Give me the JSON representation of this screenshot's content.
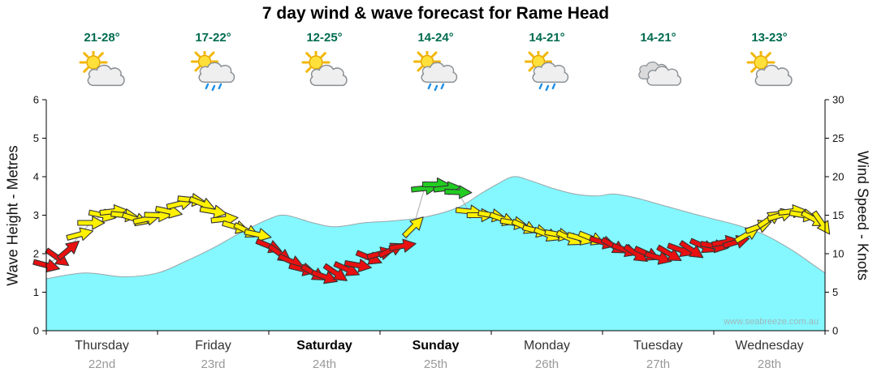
{
  "title": "7 day wind & wave forecast for Rame Head",
  "watermark": "www.seabreeze.com.au",
  "days": [
    {
      "name": "Thursday",
      "date": "22nd",
      "temp": "21-28°",
      "icon": "sun-cloud",
      "weekend": false
    },
    {
      "name": "Friday",
      "date": "23rd",
      "temp": "17-22°",
      "icon": "sun-cloud-rain",
      "weekend": false
    },
    {
      "name": "Saturday",
      "date": "24th",
      "temp": "12-25°",
      "icon": "sun-cloud",
      "weekend": true
    },
    {
      "name": "Sunday",
      "date": "25th",
      "temp": "14-24°",
      "icon": "sun-cloud-rain",
      "weekend": true
    },
    {
      "name": "Monday",
      "date": "26th",
      "temp": "14-21°",
      "icon": "sun-cloud-rain",
      "weekend": false
    },
    {
      "name": "Tuesday",
      "date": "27th",
      "temp": "14-21°",
      "icon": "cloudy",
      "weekend": false
    },
    {
      "name": "Wednesday",
      "date": "28th",
      "temp": "13-23°",
      "icon": "sun-cloud",
      "weekend": false
    }
  ],
  "axes": {
    "left_label": "Wave Height - Metres",
    "right_label": "Wind Speed - Knots",
    "left_ticks": [
      0,
      1,
      2,
      3,
      4,
      5,
      6
    ],
    "right_ticks": [
      0,
      5,
      10,
      15,
      20,
      25,
      30
    ],
    "left_range": [
      0,
      6
    ],
    "right_range": [
      0,
      30
    ]
  },
  "colors": {
    "wave_fill": "#84F7FF",
    "wave_line": "#9AA6A8",
    "arrow_red": "#E81010",
    "arrow_yellow": "#FFF100",
    "arrow_green": "#22CC22",
    "arrow_outline": "#333333",
    "connector": "#AAAAAA",
    "temp_text": "#006B4F",
    "watermark_text": "#9FB8BA"
  },
  "wind_thresholds": {
    "red_below_knots": 12,
    "green_at_or_above_knots": 17.5
  },
  "chart_data": {
    "type": "area",
    "title": "7 day wind & wave forecast for Rame Head",
    "x_unit": "days (0 = Thursday 22nd 00:00, 7 = end of Wednesday 28th)",
    "categories": [
      "Thursday 22nd",
      "Friday 23rd",
      "Saturday 24th",
      "Sunday 25th",
      "Monday 26th",
      "Tuesday 27th",
      "Wednesday 28th"
    ],
    "ylabel_left": "Wave Height - Metres",
    "ylabel_right": "Wind Speed - Knots",
    "ylim_left": [
      0,
      6
    ],
    "ylim_right": [
      0,
      30
    ],
    "grid": false,
    "wave_height_m": {
      "label": "Wave Height (metres)",
      "points": [
        [
          0,
          1.35
        ],
        [
          0.35,
          1.5
        ],
        [
          0.7,
          1.4
        ],
        [
          1.0,
          1.5
        ],
        [
          1.25,
          1.8
        ],
        [
          1.5,
          2.15
        ],
        [
          1.75,
          2.55
        ],
        [
          2.0,
          2.9
        ],
        [
          2.15,
          3.0
        ],
        [
          2.4,
          2.8
        ],
        [
          2.6,
          2.7
        ],
        [
          2.85,
          2.8
        ],
        [
          3.1,
          2.85
        ],
        [
          3.4,
          2.95
        ],
        [
          3.7,
          3.2
        ],
        [
          3.9,
          3.55
        ],
        [
          4.05,
          3.8
        ],
        [
          4.2,
          4.0
        ],
        [
          4.35,
          3.9
        ],
        [
          4.55,
          3.7
        ],
        [
          4.75,
          3.55
        ],
        [
          4.95,
          3.5
        ],
        [
          5.1,
          3.55
        ],
        [
          5.3,
          3.45
        ],
        [
          5.55,
          3.25
        ],
        [
          5.8,
          3.05
        ],
        [
          6.0,
          2.9
        ],
        [
          6.2,
          2.75
        ],
        [
          6.45,
          2.5
        ],
        [
          6.7,
          2.1
        ],
        [
          6.9,
          1.7
        ],
        [
          7.0,
          1.5
        ]
      ]
    },
    "wind_knots": {
      "label": "Wind Speed (knots) with direction arrows",
      "points_format": "[t_days, knots, arrow_rotation_deg_clockwise_from_east]",
      "points": [
        [
          0.0,
          8.5,
          15
        ],
        [
          0.1,
          9.5,
          35
        ],
        [
          0.2,
          10.5,
          -40
        ],
        [
          0.3,
          12.5,
          -15
        ],
        [
          0.4,
          14,
          0
        ],
        [
          0.5,
          15,
          12
        ],
        [
          0.6,
          15.5,
          -6
        ],
        [
          0.7,
          15,
          6
        ],
        [
          0.8,
          14.5,
          18
        ],
        [
          0.9,
          14.5,
          -12
        ],
        [
          1.0,
          15,
          2
        ],
        [
          1.1,
          15.5,
          12
        ],
        [
          1.2,
          16.5,
          -14
        ],
        [
          1.3,
          17,
          6
        ],
        [
          1.4,
          16.5,
          22
        ],
        [
          1.5,
          15.5,
          10
        ],
        [
          1.6,
          14.5,
          -6
        ],
        [
          1.7,
          13.5,
          16
        ],
        [
          1.8,
          13,
          26
        ],
        [
          1.9,
          12.5,
          12
        ],
        [
          2.0,
          11,
          22
        ],
        [
          2.1,
          10,
          36
        ],
        [
          2.2,
          9,
          24
        ],
        [
          2.3,
          8,
          14
        ],
        [
          2.4,
          7.5,
          30
        ],
        [
          2.5,
          7,
          20
        ],
        [
          2.6,
          7.5,
          34
        ],
        [
          2.7,
          8,
          24
        ],
        [
          2.8,
          8.5,
          10
        ],
        [
          2.9,
          9.5,
          22
        ],
        [
          3.0,
          10,
          -14
        ],
        [
          3.1,
          10.5,
          -26
        ],
        [
          3.2,
          11,
          -10
        ],
        [
          3.3,
          13.5,
          -45
        ],
        [
          3.4,
          18.5,
          -6
        ],
        [
          3.5,
          19,
          0
        ],
        [
          3.6,
          18.5,
          -6
        ],
        [
          3.7,
          18,
          2
        ],
        [
          3.8,
          15.5,
          6
        ],
        [
          3.9,
          15,
          0
        ],
        [
          4.0,
          15,
          10
        ],
        [
          4.1,
          14.5,
          20
        ],
        [
          4.2,
          14,
          10
        ],
        [
          4.3,
          13.5,
          24
        ],
        [
          4.4,
          13,
          14
        ],
        [
          4.5,
          12.5,
          22
        ],
        [
          4.6,
          12.5,
          10
        ],
        [
          4.7,
          12,
          26
        ],
        [
          4.8,
          12,
          16
        ],
        [
          4.9,
          12,
          22
        ],
        [
          5.0,
          11.5,
          16
        ],
        [
          5.1,
          11,
          30
        ],
        [
          5.2,
          10.5,
          20
        ],
        [
          5.3,
          10,
          34
        ],
        [
          5.4,
          10,
          24
        ],
        [
          5.5,
          9.5,
          16
        ],
        [
          5.6,
          10,
          30
        ],
        [
          5.7,
          10.5,
          20
        ],
        [
          5.8,
          10.5,
          34
        ],
        [
          5.9,
          11,
          24
        ],
        [
          6.0,
          11,
          10
        ],
        [
          6.1,
          11.5,
          -10
        ],
        [
          6.2,
          11.5,
          -16
        ],
        [
          6.3,
          12.5,
          -30
        ],
        [
          6.4,
          13.5,
          -20
        ],
        [
          6.5,
          14.5,
          -34
        ],
        [
          6.6,
          15,
          -16
        ],
        [
          6.7,
          15.5,
          -6
        ],
        [
          6.8,
          15,
          10
        ],
        [
          6.9,
          14.5,
          28
        ],
        [
          6.97,
          14,
          55
        ]
      ]
    }
  }
}
